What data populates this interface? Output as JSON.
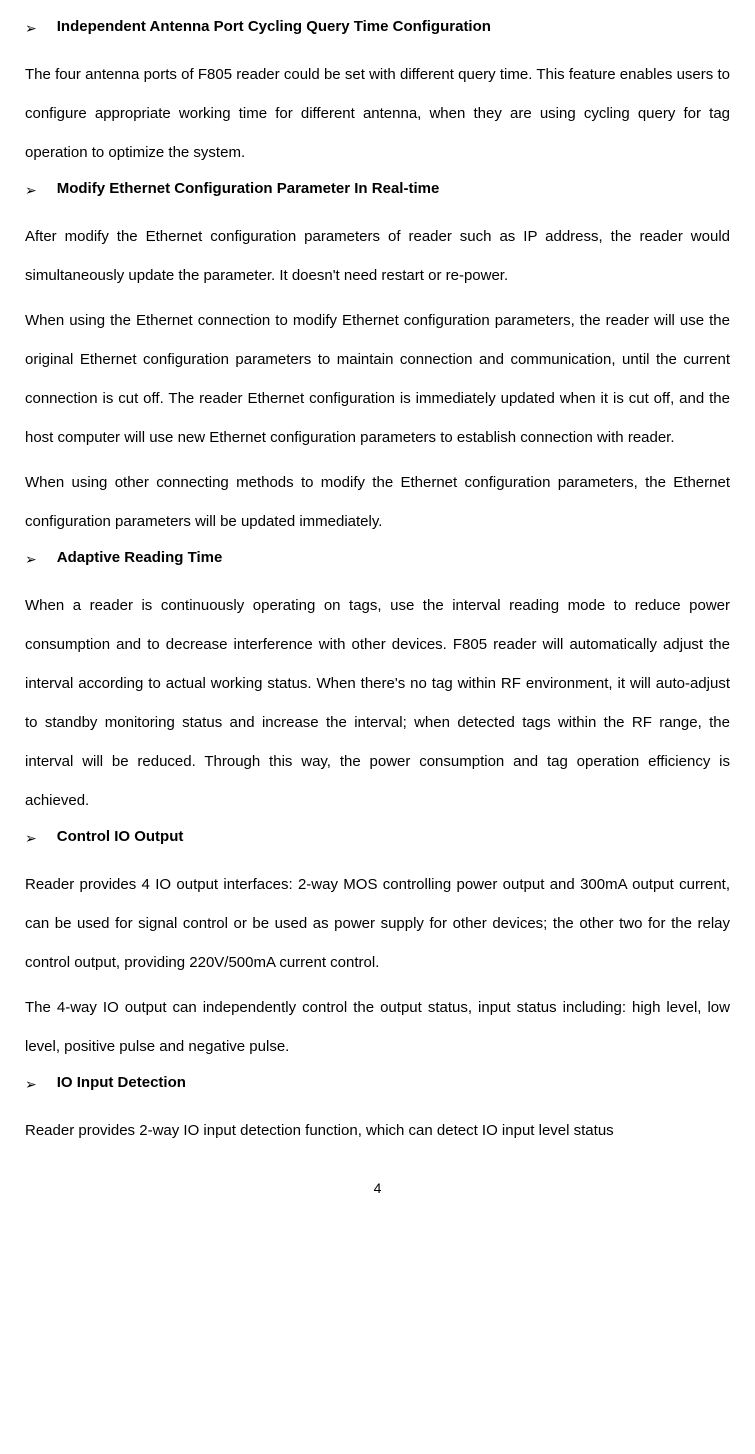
{
  "sections": [
    {
      "heading": "Independent Antenna Port Cycling Query Time Configuration",
      "paragraphs": [
        "The four antenna ports of F805 reader could be set with different query time. This feature enables users to configure appropriate working time for different antenna, when they are using cycling query for tag operation to optimize the system."
      ]
    },
    {
      "heading": "Modify Ethernet Configuration Parameter In Real-time",
      "paragraphs": [
        "After modify the Ethernet configuration parameters of reader such as IP address, the reader would simultaneously update the parameter. It doesn't need restart or re-power.",
        "When using the Ethernet connection to modify Ethernet configuration parameters, the reader will use the original Ethernet configuration parameters to maintain connection and communication, until the current connection is cut off. The reader Ethernet configuration is immediately updated when it is cut off, and the host computer will use new Ethernet configuration parameters to establish connection with reader.",
        "When using other connecting methods to modify the Ethernet configuration parameters, the Ethernet configuration parameters will be updated immediately."
      ]
    },
    {
      "heading": "Adaptive Reading Time",
      "paragraphs": [
        "When a reader is continuously operating on tags, use the interval reading mode to reduce power consumption and to decrease interference with other devices. F805 reader will automatically adjust the interval according to actual working status. When there's no tag within RF environment, it will auto-adjust to standby monitoring status and increase the interval; when detected tags within the RF range, the interval will be reduced. Through this way, the power consumption and tag operation efficiency is achieved."
      ]
    },
    {
      "heading": "Control IO Output",
      "paragraphs": [
        "Reader provides 4 IO output interfaces: 2-way MOS controlling power output and 300mA output current, can be used for signal control or be used as power supply for other devices; the other two for the relay control output, providing 220V/500mA current control.",
        "The 4-way IO output can independently control the output status, input status including: high level, low level, positive pulse and negative pulse."
      ]
    },
    {
      "heading": "IO Input Detection",
      "paragraphs": [
        "Reader provides 2-way IO input detection function, which can detect IO input level status"
      ]
    }
  ],
  "arrow_symbol": "➢",
  "page_number": "4"
}
